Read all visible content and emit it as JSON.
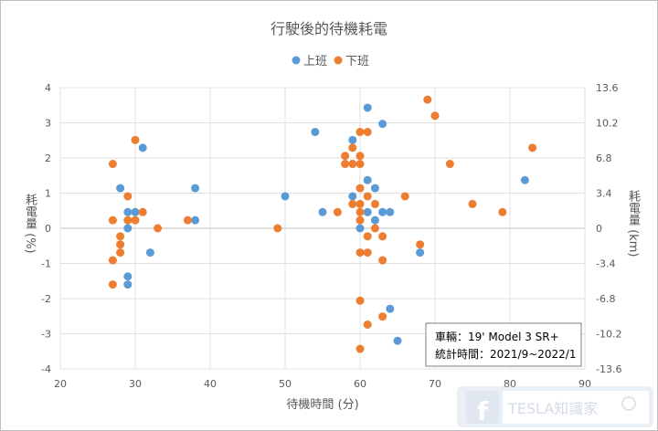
{
  "chart_data": {
    "type": "scatter",
    "title": "行駛後的待機耗電",
    "xlabel": "待機時間 (分)",
    "ylabel": "耗電量 (%)",
    "y2label": "耗電量 (km)",
    "xlim": [
      20,
      90
    ],
    "ylim": [
      -4,
      4
    ],
    "y2lim": [
      -13.6,
      13.6
    ],
    "xticks": [
      "20",
      "30",
      "40",
      "50",
      "60",
      "70",
      "80",
      "90"
    ],
    "yticks": [
      "4",
      "3",
      "2",
      "1",
      "0",
      "-1",
      "-2",
      "-3",
      "-4"
    ],
    "y2ticks": [
      "13.6",
      "10.2",
      "6.8",
      "3.4",
      "0",
      "-3.4",
      "-6.8",
      "-10.2",
      "-13.6"
    ],
    "grid": true,
    "legend_position": "top",
    "series": [
      {
        "name": "上班",
        "color": "#5b9bd5",
        "points": [
          [
            28,
            1.14
          ],
          [
            31,
            2.29
          ],
          [
            29,
            0.46
          ],
          [
            30,
            0.46
          ],
          [
            29,
            0
          ],
          [
            38,
            1.14
          ],
          [
            38,
            0.23
          ],
          [
            32,
            -0.69
          ],
          [
            29,
            -1.37
          ],
          [
            29,
            -1.6
          ],
          [
            50,
            0.91
          ],
          [
            54,
            2.74
          ],
          [
            55,
            0.46
          ],
          [
            59,
            0.91
          ],
          [
            59,
            2.51
          ],
          [
            61,
            3.43
          ],
          [
            63,
            2.97
          ],
          [
            61,
            1.37
          ],
          [
            62,
            1.14
          ],
          [
            61,
            0.46
          ],
          [
            63,
            0.46
          ],
          [
            64,
            0.46
          ],
          [
            60,
            0
          ],
          [
            62,
            0.23
          ],
          [
            68,
            -0.69
          ],
          [
            82,
            1.37
          ],
          [
            64,
            -2.29
          ],
          [
            65,
            -3.2
          ]
        ]
      },
      {
        "name": "下班",
        "color": "#ed7d31",
        "points": [
          [
            30,
            2.51
          ],
          [
            27,
            1.83
          ],
          [
            29,
            0.91
          ],
          [
            31,
            0.46
          ],
          [
            27,
            0.23
          ],
          [
            29,
            0.23
          ],
          [
            30,
            0.23
          ],
          [
            33,
            0
          ],
          [
            37,
            0.23
          ],
          [
            49,
            0
          ],
          [
            28,
            -0.23
          ],
          [
            28,
            -0.46
          ],
          [
            28,
            -0.69
          ],
          [
            27,
            -0.91
          ],
          [
            27,
            -1.6
          ],
          [
            69,
            3.66
          ],
          [
            70,
            3.2
          ],
          [
            60,
            2.74
          ],
          [
            61,
            2.74
          ],
          [
            59,
            2.29
          ],
          [
            58,
            2.06
          ],
          [
            60,
            2.06
          ],
          [
            58,
            1.83
          ],
          [
            59,
            1.83
          ],
          [
            60,
            1.83
          ],
          [
            60,
            1.14
          ],
          [
            61,
            0.91
          ],
          [
            66,
            0.91
          ],
          [
            59,
            0.69
          ],
          [
            60,
            0.69
          ],
          [
            62,
            0.69
          ],
          [
            57,
            0.46
          ],
          [
            60,
            0.46
          ],
          [
            60,
            0.23
          ],
          [
            62,
            0
          ],
          [
            61,
            -0.23
          ],
          [
            63,
            -0.23
          ],
          [
            60,
            -0.69
          ],
          [
            61,
            -0.69
          ],
          [
            63,
            -0.91
          ],
          [
            68,
            -0.46
          ],
          [
            60,
            -2.06
          ],
          [
            63,
            -2.51
          ],
          [
            61,
            -2.74
          ],
          [
            60,
            -3.43
          ],
          [
            72,
            1.83
          ],
          [
            75,
            0.69
          ],
          [
            79,
            0.46
          ],
          [
            83,
            2.29
          ]
        ]
      }
    ],
    "annotation": [
      "車輛：19' Model 3 SR+",
      "統計時間：2021/9~2022/1"
    ]
  },
  "watermark": "TESLA知識家"
}
